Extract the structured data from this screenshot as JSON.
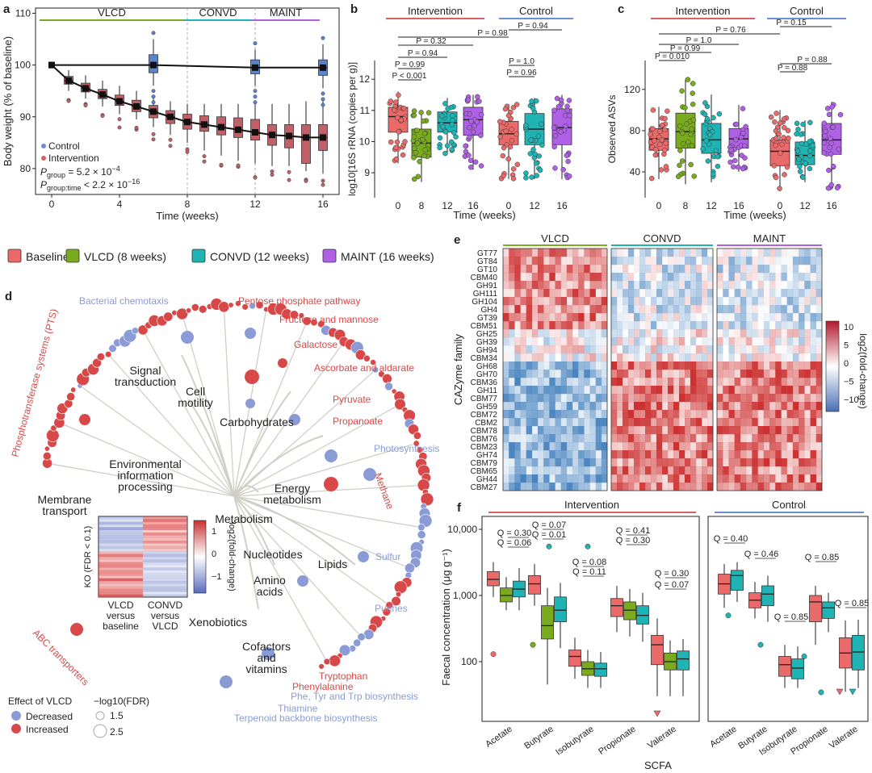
{
  "colors": {
    "baseline": "#ea6a6a",
    "vlcd": "#7aab1e",
    "convd": "#20b3b3",
    "maint": "#b060e6",
    "control": "#6a8fd6",
    "intervention": "#d96060",
    "decreased": "#8a9bd6",
    "increased": "#d94848"
  },
  "legend_groups": [
    "Baseline",
    "VLCD (8 weeks)",
    "CONVD (12 weeks)",
    "MAINT (16 weeks)"
  ],
  "chart_data": [
    {
      "panel": "a",
      "type": "line",
      "xlabel": "Time (weeks)",
      "ylabel": "Body weight (% of baseline)",
      "xlim": [
        -1,
        17
      ],
      "ylim": [
        75,
        111
      ],
      "xticks": [
        "0",
        "4",
        "8",
        "12",
        "16"
      ],
      "yticks": [
        "80",
        "90",
        "100",
        "110"
      ],
      "phases": [
        "VLCD",
        "CONVD",
        "MAINT"
      ],
      "legend": [
        "Control",
        "Intervention"
      ],
      "stat1": "P",
      "stat1_sub": "group",
      "stat1_val": " = 5.2 × 10",
      "stat1_exp": "−4",
      "stat2": "P",
      "stat2_sub": "group:time",
      "stat2_val": " < 2.2 × 10",
      "stat2_exp": "−16",
      "series": [
        {
          "name": "Control",
          "x": [
            0,
            6,
            12,
            16
          ],
          "values": [
            100,
            100,
            99.5,
            99.5
          ]
        },
        {
          "name": "Intervention",
          "x": [
            0,
            1,
            2,
            3,
            4,
            5,
            6,
            7,
            8,
            9,
            10,
            11,
            12,
            13,
            14,
            15,
            16
          ],
          "values": [
            100,
            97,
            95.5,
            94.3,
            93,
            92,
            91,
            90,
            89,
            88.5,
            88,
            87.5,
            87,
            86.5,
            86.3,
            86,
            86
          ]
        }
      ],
      "control_boxes": [
        {
          "x": 6,
          "q1": 98.5,
          "med": 100,
          "q3": 102,
          "lo": 96,
          "hi": 105
        },
        {
          "x": 12,
          "q1": 98.3,
          "med": 99.5,
          "q3": 101,
          "lo": 96,
          "hi": 103
        },
        {
          "x": 16,
          "q1": 98,
          "med": 99.5,
          "q3": 101,
          "lo": 95.5,
          "hi": 104
        }
      ],
      "intervention_boxes": [
        {
          "x": 1,
          "q1": 96.3,
          "med": 97,
          "q3": 97.8,
          "lo": 95,
          "hi": 99
        },
        {
          "x": 2,
          "q1": 94.8,
          "med": 95.5,
          "q3": 96.5,
          "lo": 93.5,
          "hi": 98
        },
        {
          "x": 3,
          "q1": 93.5,
          "med": 94.3,
          "q3": 95.3,
          "lo": 92,
          "hi": 97
        },
        {
          "x": 4,
          "q1": 92.2,
          "med": 93,
          "q3": 94.2,
          "lo": 90.5,
          "hi": 96
        },
        {
          "x": 5,
          "q1": 91,
          "med": 92,
          "q3": 93.2,
          "lo": 89.5,
          "hi": 95
        },
        {
          "x": 6,
          "q1": 89.8,
          "med": 91,
          "q3": 92.2,
          "lo": 88,
          "hi": 94
        },
        {
          "x": 7,
          "q1": 88.7,
          "med": 90,
          "q3": 91.2,
          "lo": 86.5,
          "hi": 93
        },
        {
          "x": 8,
          "q1": 87.6,
          "med": 89,
          "q3": 90.5,
          "lo": 85,
          "hi": 92.5
        },
        {
          "x": 9,
          "q1": 87.2,
          "med": 88.5,
          "q3": 90.2,
          "lo": 83.5,
          "hi": 92.5
        },
        {
          "x": 10,
          "q1": 86.5,
          "med": 88,
          "q3": 90,
          "lo": 82.5,
          "hi": 92.5
        },
        {
          "x": 11,
          "q1": 86,
          "med": 87.5,
          "q3": 89.8,
          "lo": 81.5,
          "hi": 92.5
        },
        {
          "x": 12,
          "q1": 85.5,
          "med": 87,
          "q3": 89.5,
          "lo": 81,
          "hi": 93
        },
        {
          "x": 13,
          "q1": 84.5,
          "med": 86.5,
          "q3": 88.5,
          "lo": 80.5,
          "hi": 92.5
        },
        {
          "x": 14,
          "q1": 84,
          "med": 86.3,
          "q3": 88.5,
          "lo": 80.5,
          "hi": 92.5
        },
        {
          "x": 15,
          "q1": 81,
          "med": 86,
          "q3": 88.5,
          "lo": 79.5,
          "hi": 93
        },
        {
          "x": 16,
          "q1": 83.5,
          "med": 86,
          "q3": 88.5,
          "lo": 79,
          "hi": 93
        }
      ]
    },
    {
      "panel": "b",
      "type": "box",
      "xlabel": "Time (weeks)",
      "ylabel": "log10[16S rRNA (copies per g)]",
      "ylim": [
        8.2,
        12.6
      ],
      "yticks": [
        "9",
        "10",
        "11",
        "12"
      ],
      "groups": [
        "Intervention",
        "Control"
      ],
      "brackets": [
        "P = 0.94",
        "P = 0.98",
        "P = 0.32",
        "P = 0.94",
        "P = 0.99",
        "P < 0.001",
        "P = 1.0",
        "P = 0.96"
      ],
      "boxes": [
        {
          "label": "0",
          "q1": 10.3,
          "med": 10.8,
          "q3": 11.1,
          "lo": 9.3,
          "hi": 11.6
        },
        {
          "label": "8",
          "q1": 9.5,
          "med": 9.95,
          "q3": 10.4,
          "lo": 8.7,
          "hi": 11.0
        },
        {
          "label": "12",
          "q1": 10.3,
          "med": 10.6,
          "q3": 10.95,
          "lo": 9.6,
          "hi": 11.4
        },
        {
          "label": "16",
          "q1": 10.2,
          "med": 10.7,
          "q3": 11.1,
          "lo": 9.1,
          "hi": 11.5
        },
        {
          "label": "0",
          "q1": 9.9,
          "med": 10.25,
          "q3": 10.65,
          "lo": 8.8,
          "hi": 11.2
        },
        {
          "label": "12",
          "q1": 9.9,
          "med": 10.4,
          "q3": 10.9,
          "lo": 8.8,
          "hi": 11.4
        },
        {
          "label": "16",
          "q1": 9.9,
          "med": 10.45,
          "q3": 11.05,
          "lo": 8.8,
          "hi": 11.5
        }
      ]
    },
    {
      "panel": "c",
      "type": "box",
      "xlabel": "Time (weeks)",
      "ylabel": "Observed ASVs",
      "ylim": [
        15,
        148
      ],
      "yticks": [
        "40",
        "80",
        "120"
      ],
      "groups": [
        "Intervention",
        "Control"
      ],
      "brackets": [
        "P = 0.76",
        "P = 0.15",
        "P = 1.0",
        "P = 0.99",
        "P = 0.010",
        "P = 0.88",
        "P = 0.88"
      ],
      "boxes": [
        {
          "label": "0",
          "q1": 61,
          "med": 72,
          "q3": 82,
          "lo": 33,
          "hi": 103
        },
        {
          "label": "8",
          "q1": 63,
          "med": 79,
          "q3": 97,
          "lo": 28,
          "hi": 130
        },
        {
          "label": "12",
          "q1": 58,
          "med": 71,
          "q3": 87,
          "lo": 30,
          "hi": 115
        },
        {
          "label": "16",
          "q1": 63,
          "med": 72,
          "q3": 82,
          "lo": 40,
          "hi": 105
        },
        {
          "label": "0",
          "q1": 46,
          "med": 60,
          "q3": 71,
          "lo": 22,
          "hi": 100
        },
        {
          "label": "12",
          "q1": 47,
          "med": 56,
          "q3": 69,
          "lo": 30,
          "hi": 90
        },
        {
          "label": "16",
          "q1": 57,
          "med": 71,
          "q3": 87,
          "lo": 24,
          "hi": 108
        }
      ]
    },
    {
      "panel": "d",
      "type": "diagram",
      "nodes": [
        "Signal transduction",
        "Cell motility",
        "Carbohydrates",
        "Environmental information processing",
        "Membrane transport",
        "Metabolism",
        "Energy metabolism",
        "Nucleotides",
        "Lipids",
        "Amino acids",
        "Xenobiotics",
        "Cofactors and vitamins"
      ],
      "outer_labels_red": [
        "Pentose phosphate pathway",
        "Fructose and mannose",
        "Galactose",
        "Ascorbate and aldarate",
        "Pyruvate",
        "Propanoate",
        "Methane",
        "Tryptophan",
        "Phenylalanine",
        "ABC transporters",
        "Phosphotransferase systems (PTS)"
      ],
      "outer_labels_blue": [
        "Bacterial chemotaxis",
        "Photosynthesis",
        "Sulfur",
        "Purines",
        "Phe, Tyr and Trp biosynthesis",
        "Thiamine",
        "Terpenoid backbone biosynthesis"
      ],
      "inset_ylabel": "KO (FDR < 0.1)",
      "inset_cols": [
        "VLCD versus baseline",
        "CONVD versus VLCD"
      ],
      "inset_cbar_ticks": [
        "1",
        "0",
        "−1"
      ],
      "inset_cbar_label": "log2(fold-change)",
      "legend_title_effect": "Effect of VLCD",
      "legend_effect": [
        "Decreased",
        "Increased"
      ],
      "legend_title_size": "−log10(FDR)",
      "legend_size": [
        "1.5",
        "2.5"
      ]
    },
    {
      "panel": "e",
      "type": "heatmap",
      "ylabel": "CAZyme family",
      "columns": [
        "VLCD",
        "CONVD",
        "MAINT"
      ],
      "rows": [
        "GT77",
        "GT84",
        "GT10",
        "CBM40",
        "GH91",
        "GH111",
        "GH104",
        "GH4",
        "GT39",
        "CBM51",
        "GH25",
        "GH39",
        "GH94",
        "CBM34",
        "GH68",
        "GH70",
        "CBM36",
        "GH11",
        "CBM77",
        "GH59",
        "CBM72",
        "CBM2",
        "CBM78",
        "CBM76",
        "CBM23",
        "GH74",
        "CBM79",
        "CBM65",
        "GH44",
        "CBM27"
      ],
      "colorbar_ticks": [
        "10",
        "5",
        "0",
        "−5",
        "−10"
      ],
      "colorbar_label": "log2(fold-change)"
    },
    {
      "panel": "f",
      "type": "box",
      "xlabel": "SCFA",
      "ylabel": "Faecal concentration (μg g⁻¹)",
      "scale": "log",
      "yticks": [
        "100",
        "1,000",
        "10,000"
      ],
      "groups": [
        "Intervention",
        "Control"
      ],
      "categories": [
        "Acetate",
        "Butyrate",
        "Isobutyrate",
        "Propionate",
        "Valerate"
      ],
      "q_intervention": [
        {
          "cat": "Acetate",
          "q": [
            "Q = 0.30",
            "Q = 0.06"
          ]
        },
        {
          "cat": "Butyrate",
          "q": [
            "Q = 0.07",
            "Q = 0.01"
          ]
        },
        {
          "cat": "Isobutyrate",
          "q": [
            "Q = 0.08",
            "Q = 0.11"
          ]
        },
        {
          "cat": "Propionate",
          "q": [
            "Q = 0.41",
            "Q = 0.30"
          ]
        },
        {
          "cat": "Valerate",
          "q": [
            "Q = 0.30",
            "Q = 0.07"
          ]
        }
      ],
      "q_control": [
        "Q = 0.40",
        "Q = 0.46",
        "Q = 0.85",
        "Q = 0.85",
        "Q = 0.85"
      ],
      "intervention_boxes": [
        {
          "cat": "Acetate",
          "vals": [
            [
              1400,
              1750,
              2300,
              950,
              3200
            ],
            [
              800,
              1000,
              1300,
              600,
              1900
            ],
            [
              950,
              1250,
              1650,
              600,
              2600
            ]
          ]
        },
        {
          "cat": "Butyrate",
          "vals": [
            [
              1050,
              1500,
              2000,
              700,
              3000
            ],
            [
              220,
              350,
              700,
              45,
              1300
            ],
            [
              400,
              600,
              950,
              160,
              1550
            ]
          ]
        },
        {
          "cat": "Isobutyrate",
          "vals": [
            [
              85,
              120,
              150,
              55,
              230
            ],
            [
              62,
              78,
              100,
              40,
              150
            ],
            [
              60,
              78,
              95,
              40,
              140
            ]
          ]
        },
        {
          "cat": "Propionate",
          "vals": [
            [
              480,
              700,
              900,
              280,
              1400
            ],
            [
              430,
              600,
              800,
              240,
              1250
            ],
            [
              370,
              500,
              700,
              200,
              1100
            ]
          ]
        },
        {
          "cat": "Valerate",
          "vals": [
            [
              90,
              180,
              250,
              30,
              450
            ],
            [
              75,
              100,
              135,
              30,
              210
            ],
            [
              75,
              110,
              145,
              30,
              220
            ]
          ]
        }
      ],
      "control_boxes": [
        {
          "cat": "Acetate",
          "vals": [
            [
              1050,
              1500,
              2100,
              650,
              3000
            ],
            [
              1200,
              2000,
              2400,
              800,
              3200
            ]
          ]
        },
        {
          "cat": "Butyrate",
          "vals": [
            [
              650,
              850,
              1100,
              450,
              1600
            ],
            [
              700,
              1050,
              1400,
              400,
              2000
            ]
          ]
        },
        {
          "cat": "Isobutyrate",
          "vals": [
            [
              60,
              90,
              120,
              40,
              180
            ],
            [
              55,
              80,
              110,
              40,
              170
            ]
          ]
        },
        {
          "cat": "Propionate",
          "vals": [
            [
              400,
              800,
              1000,
              180,
              1400
            ],
            [
              450,
              650,
              800,
              280,
              1100
            ]
          ]
        },
        {
          "cat": "Valerate",
          "vals": [
            [
              80,
              135,
              230,
              35,
              420
            ],
            [
              75,
              140,
              250,
              40,
              430
            ]
          ]
        }
      ]
    }
  ]
}
